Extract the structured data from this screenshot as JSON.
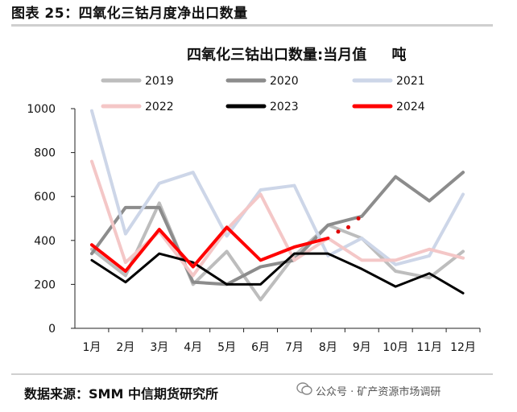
{
  "figure_title": "图表 25：四氧化三钴月度净出口数量",
  "source": "数据来源：SMM 中信期货研究所",
  "watermark": "公众号 · 矿产资源市场调研",
  "chart_data": {
    "type": "line",
    "title": "四氧化三钴出口数量:当月值",
    "unit": "吨",
    "categories": [
      "1月",
      "2月",
      "3月",
      "4月",
      "5月",
      "6月",
      "7月",
      "8月",
      "9月",
      "10月",
      "11月",
      "12月"
    ],
    "ylim": [
      0,
      1000
    ],
    "yticks": [
      0,
      200,
      400,
      600,
      800,
      1000
    ],
    "grid": false,
    "legend_position": "top",
    "series": [
      {
        "name": "2019",
        "color": "#bdbdbd",
        "values": [
          360,
          240,
          570,
          200,
          350,
          130,
          330,
          470,
          410,
          260,
          230,
          350
        ]
      },
      {
        "name": "2020",
        "color": "#8c8c8c",
        "values": [
          340,
          550,
          550,
          210,
          200,
          280,
          310,
          470,
          510,
          690,
          580,
          710
        ]
      },
      {
        "name": "2021",
        "color": "#cdd6e8",
        "values": [
          990,
          430,
          660,
          710,
          420,
          630,
          650,
          330,
          410,
          290,
          330,
          610
        ]
      },
      {
        "name": "2022",
        "color": "#f4c7c7",
        "values": [
          760,
          300,
          440,
          240,
          450,
          610,
          310,
          410,
          310,
          310,
          360,
          320
        ]
      },
      {
        "name": "2023",
        "color": "#000000",
        "values": [
          310,
          210,
          340,
          300,
          200,
          200,
          340,
          340,
          270,
          190,
          250,
          160
        ]
      },
      {
        "name": "2024",
        "color": "#ff0000",
        "values": [
          380,
          260,
          450,
          280,
          460,
          310,
          370,
          410,
          null,
          null,
          null,
          null
        ]
      }
    ],
    "projection": {
      "series": "2024",
      "color": "#e00000",
      "points": [
        [
          7.3,
          440
        ],
        [
          7.6,
          460
        ],
        [
          7.9,
          500
        ]
      ]
    }
  }
}
